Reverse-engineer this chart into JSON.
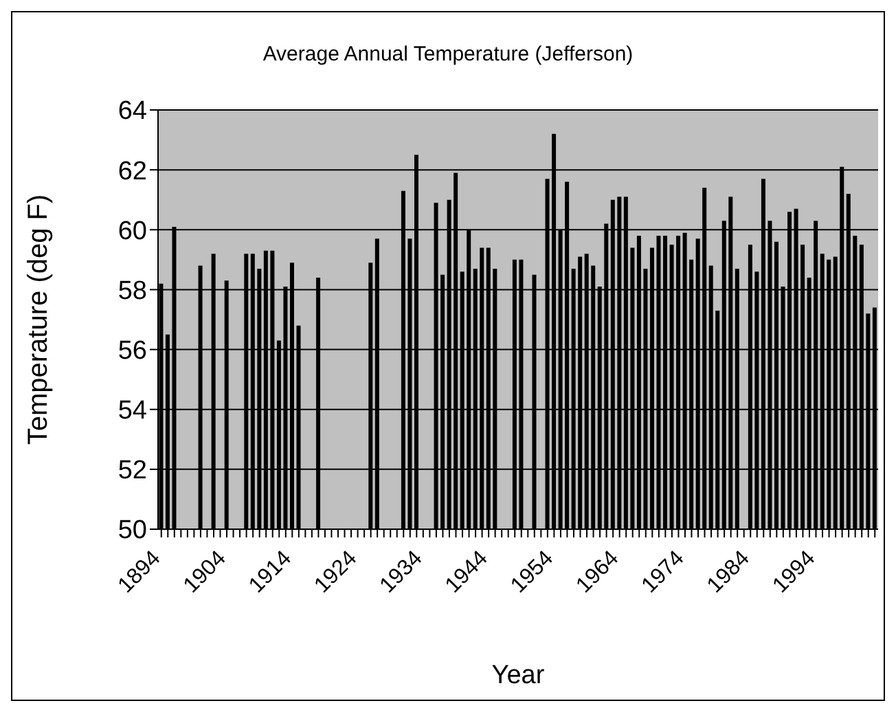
{
  "chart_data": {
    "type": "bar",
    "title": "Average Annual Temperature (Jefferson)",
    "xlabel": "Year",
    "ylabel": "Temperature (deg F)",
    "categories": [
      "1894",
      null,
      null,
      null,
      null,
      null,
      null,
      null,
      null,
      null,
      "1904",
      null,
      null,
      null,
      null,
      null,
      null,
      null,
      null,
      null,
      "1914",
      null,
      null,
      null,
      null,
      null,
      null,
      null,
      null,
      null,
      "1924",
      null,
      null,
      null,
      null,
      null,
      null,
      null,
      null,
      null,
      "1934",
      null,
      null,
      null,
      null,
      null,
      null,
      null,
      null,
      null,
      "1944",
      null,
      null,
      null,
      null,
      null,
      null,
      null,
      null,
      null,
      "1954",
      null,
      null,
      null,
      null,
      null,
      null,
      null,
      null,
      null,
      "1964",
      null,
      null,
      null,
      null,
      null,
      null,
      null,
      null,
      null,
      "1974",
      null,
      null,
      null,
      null,
      null,
      null,
      null,
      null,
      null,
      "1984",
      null,
      null,
      null,
      null,
      null,
      null,
      null,
      null,
      null,
      "1994",
      null,
      null,
      null,
      null,
      null,
      null,
      null,
      null,
      null
    ],
    "values": [
      58.2,
      56.5,
      60.1,
      null,
      null,
      null,
      58.8,
      null,
      59.2,
      null,
      58.3,
      null,
      null,
      59.2,
      59.2,
      58.7,
      59.3,
      59.3,
      56.3,
      58.1,
      58.9,
      56.8,
      null,
      null,
      58.4,
      null,
      null,
      null,
      null,
      null,
      null,
      null,
      58.9,
      59.7,
      null,
      null,
      null,
      61.3,
      59.7,
      62.5,
      null,
      null,
      60.9,
      58.5,
      61.0,
      61.9,
      58.6,
      60.0,
      58.7,
      59.4,
      59.4,
      58.7,
      null,
      null,
      59.0,
      59.0,
      null,
      58.5,
      null,
      61.7,
      63.2,
      60.0,
      61.6,
      58.7,
      59.1,
      59.2,
      58.8,
      58.1,
      60.2,
      61.0,
      61.1,
      61.1,
      59.4,
      59.8,
      58.7,
      59.4,
      59.8,
      59.8,
      59.5,
      59.8,
      59.9,
      59.0,
      59.7,
      61.4,
      58.8,
      57.3,
      60.3,
      61.1,
      58.7,
      null,
      59.5,
      58.6,
      61.7,
      60.3,
      59.6,
      58.1,
      60.6,
      60.7,
      59.5,
      58.4,
      60.3,
      59.2,
      59.0,
      59.1,
      62.1,
      61.2,
      59.8,
      59.5,
      57.2,
      57.4
    ],
    "color": "#000000",
    "ylim": [
      50,
      64
    ],
    "yticks": [
      50,
      52,
      54,
      56,
      58,
      60,
      62,
      64
    ],
    "grid": "y"
  }
}
